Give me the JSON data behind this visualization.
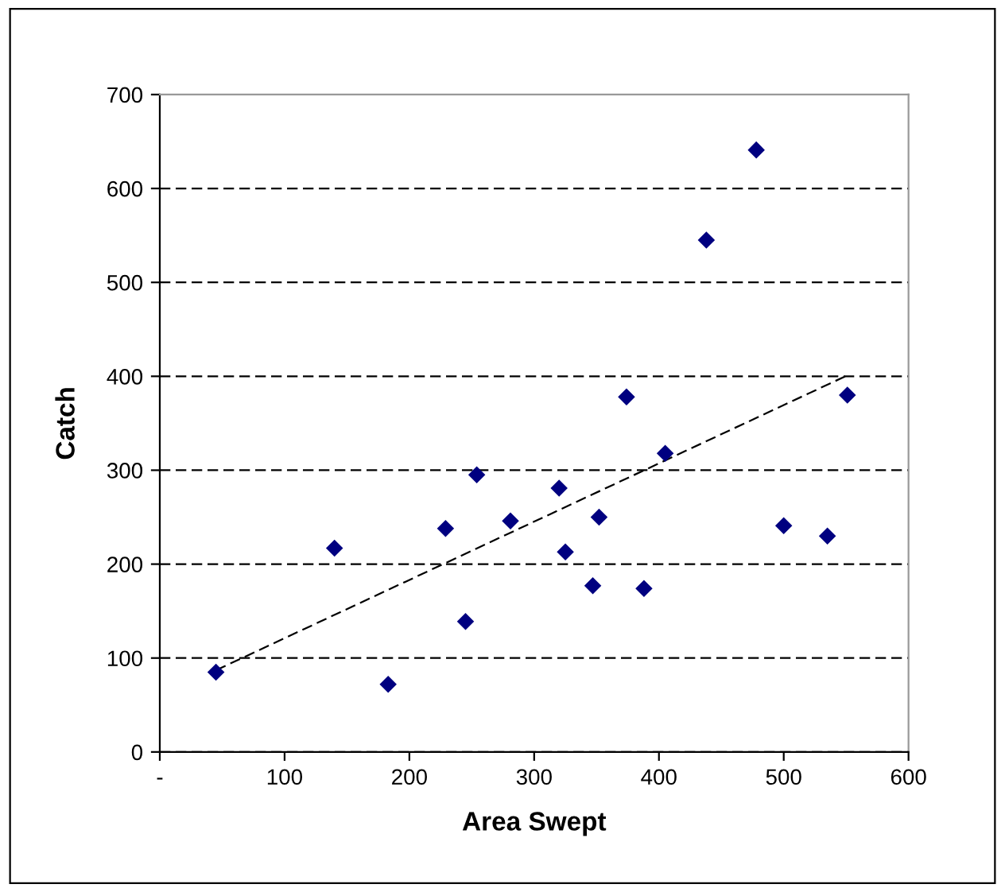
{
  "chart_data": {
    "type": "scatter",
    "xlabel": "Area Swept",
    "ylabel": "Catch",
    "series": [
      {
        "color": "#000080",
        "marker": "diamond",
        "x": [
          45,
          140,
          183,
          229,
          245,
          254,
          281,
          320,
          325,
          347,
          352,
          374,
          388,
          405,
          438,
          478,
          500,
          535,
          551
        ],
        "values": [
          85,
          217,
          72,
          238,
          139,
          295,
          246,
          281,
          213,
          177,
          250,
          378,
          174,
          318,
          545,
          641,
          241,
          230,
          380
        ]
      },
      {
        "type": "line",
        "color": "#000000",
        "line_style": "dashed",
        "marker": "none",
        "x": [
          45,
          551
        ],
        "values": [
          87,
          401
        ]
      }
    ],
    "xlim": [
      0,
      600
    ],
    "xticks": [
      {
        "value": 0,
        "label": "-"
      },
      100,
      200,
      300,
      400,
      500,
      600
    ],
    "ylim": [
      0,
      700
    ],
    "yticks": [
      0,
      100,
      200,
      300,
      400,
      500,
      600,
      700
    ],
    "grid": "y",
    "legend": false
  }
}
